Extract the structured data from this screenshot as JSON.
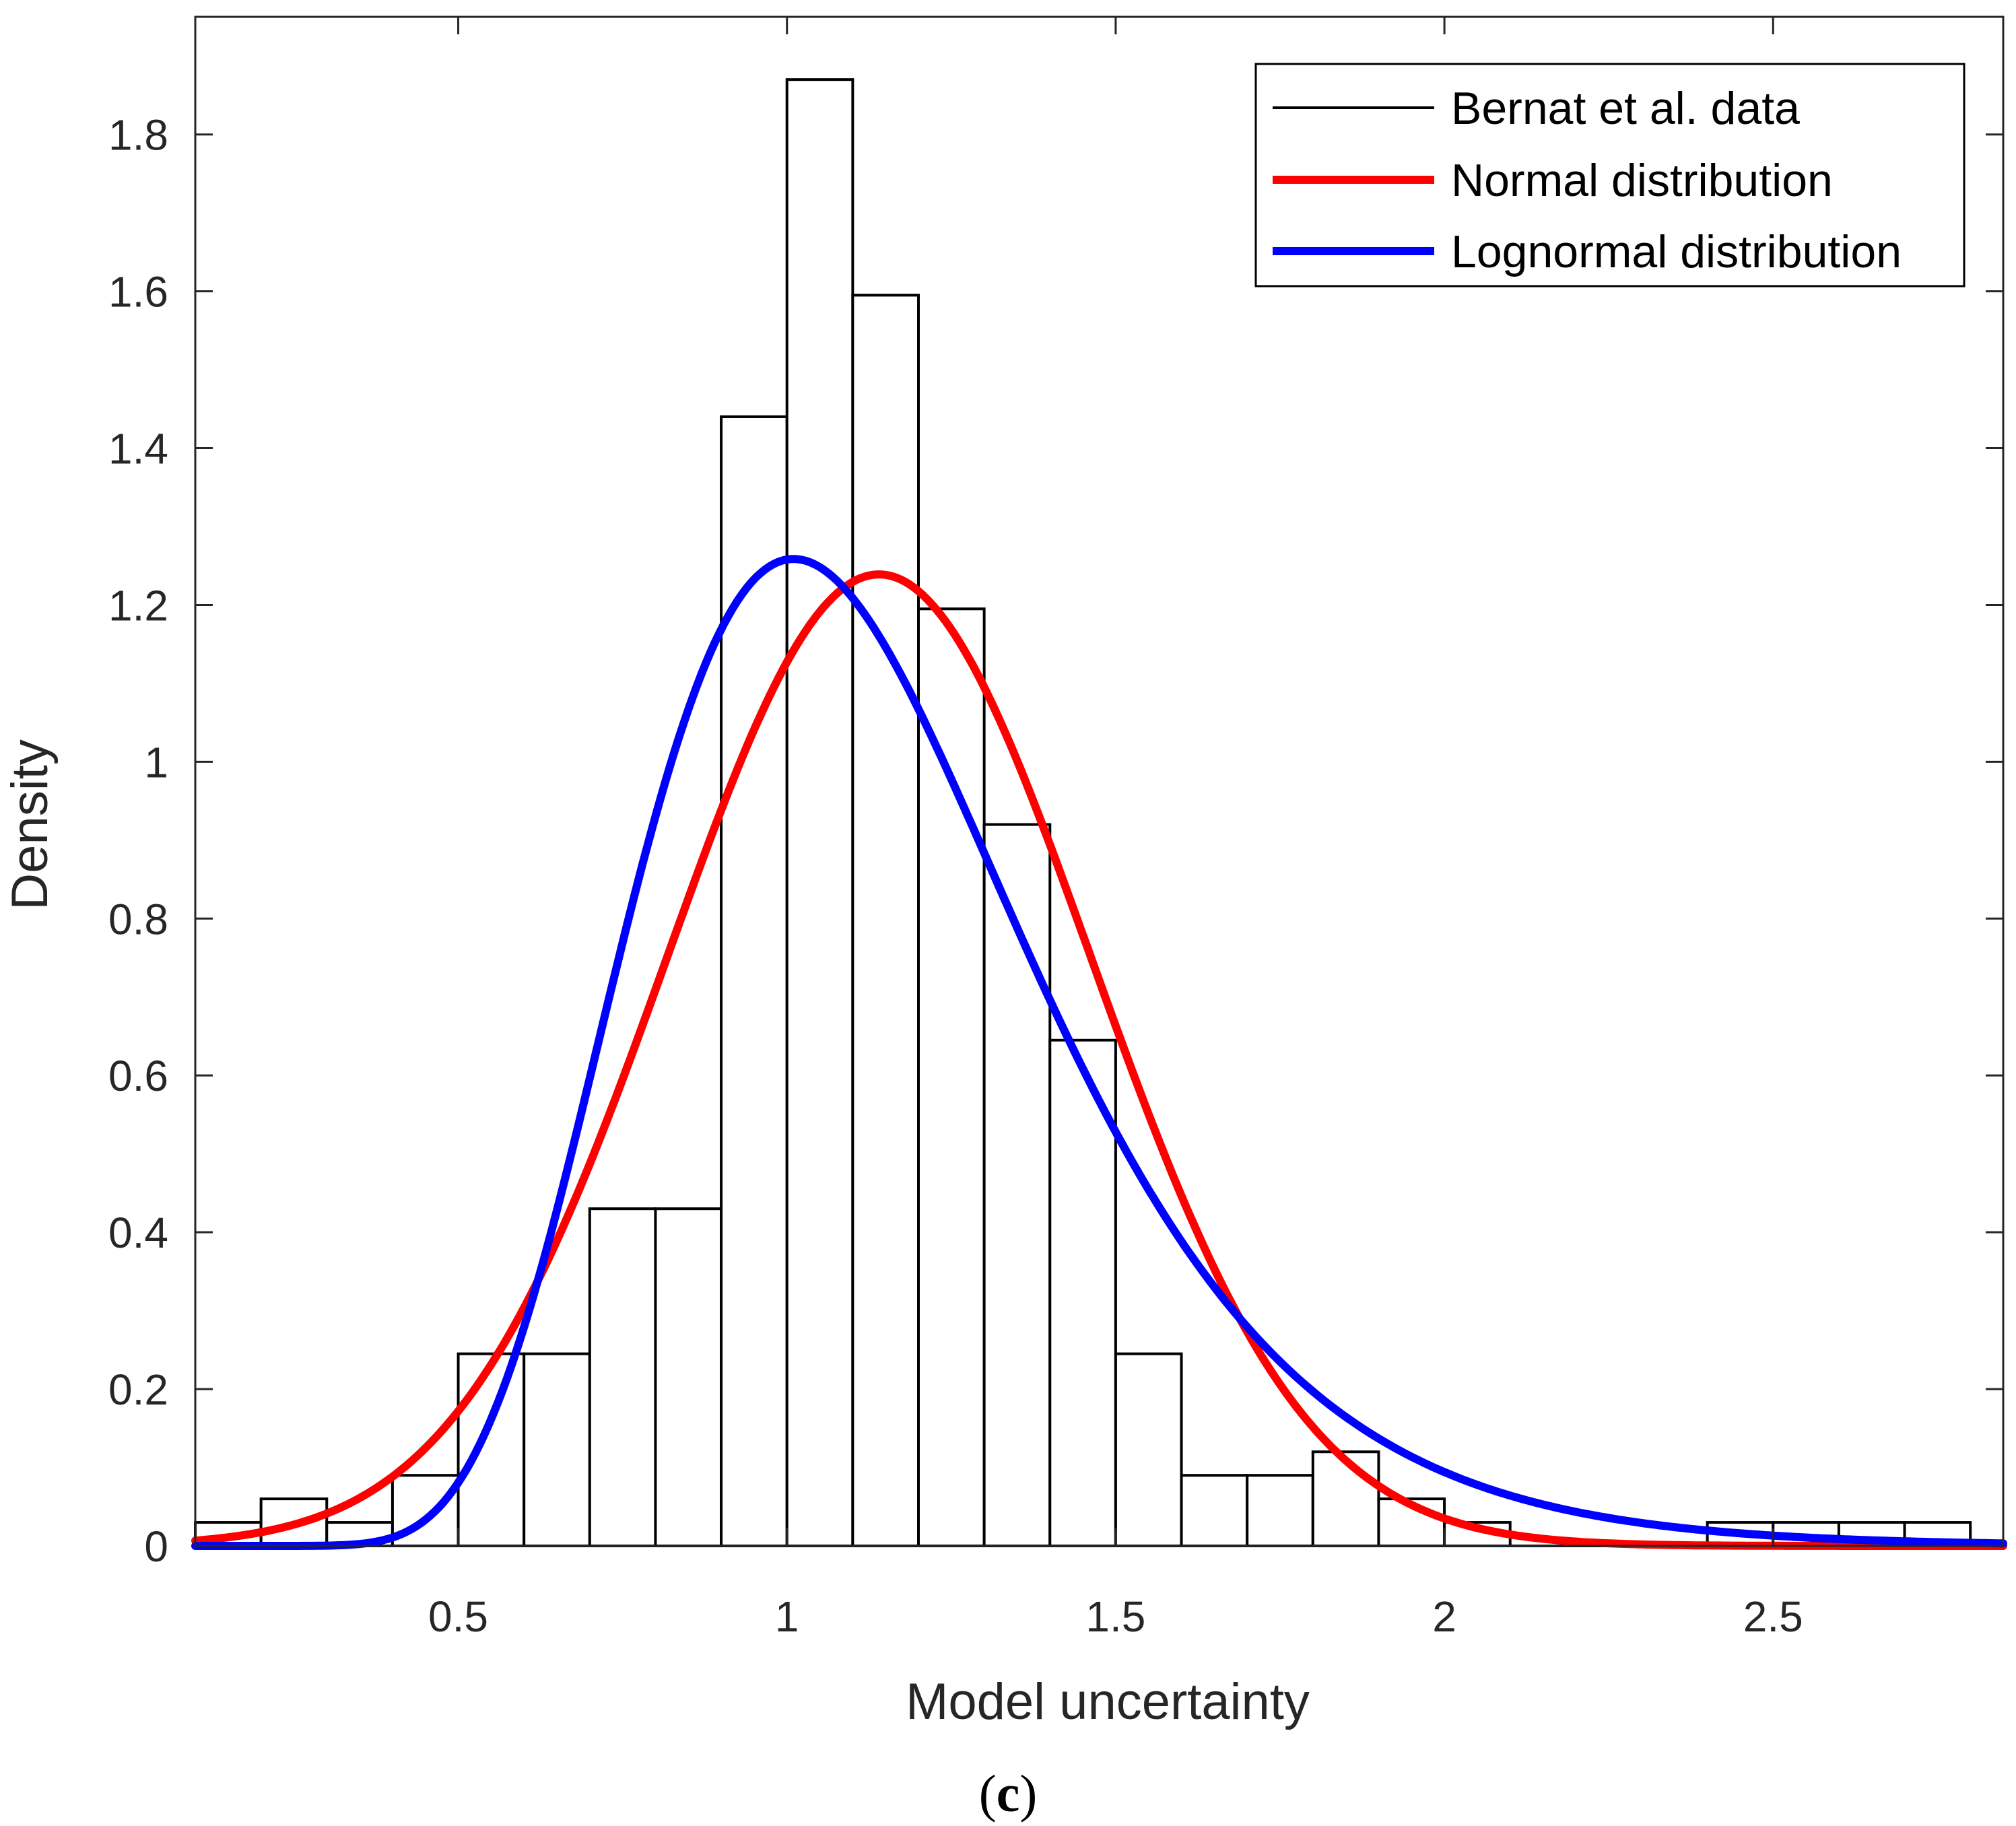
{
  "chart_data": {
    "type": "bar",
    "title": "",
    "xlabel": "Model uncertainty",
    "ylabel": "Density",
    "xlim": [
      0.1,
      2.85
    ],
    "ylim": [
      0,
      1.95
    ],
    "xticks": [
      0.5,
      1,
      1.5,
      2,
      2.5
    ],
    "xtick_labels": [
      "0.5",
      "1",
      "1.5",
      "2",
      "2.5"
    ],
    "yticks": [
      0,
      0.2,
      0.4,
      0.6,
      0.8,
      1,
      1.2,
      1.4,
      1.6,
      1.8
    ],
    "ytick_labels": [
      "0",
      "0.2",
      "0.4",
      "0.6",
      "0.8",
      "1",
      "1.2",
      "1.4",
      "1.6",
      "1.8"
    ],
    "grid": false,
    "legend_position": "top-right",
    "histogram": {
      "name": "Bernat et al. data",
      "color": "#000000",
      "bin_width": 0.1,
      "bin_starts": [
        0.1,
        0.2,
        0.3,
        0.4,
        0.5,
        0.6,
        0.7,
        0.8,
        0.9,
        1.0,
        1.1,
        1.2,
        1.3,
        1.4,
        1.5,
        1.6,
        1.7,
        1.8,
        1.9,
        2.0,
        2.1,
        2.2,
        2.3,
        2.4,
        2.5,
        2.6,
        2.7
      ],
      "densities": [
        0.03,
        0.06,
        0.03,
        0.09,
        0.245,
        0.245,
        0.43,
        0.43,
        1.44,
        1.87,
        1.595,
        1.195,
        0.92,
        0.645,
        0.245,
        0.09,
        0.09,
        0.12,
        0.06,
        0.03,
        0.0,
        0.0,
        0.0,
        0.03,
        0.03,
        0.03,
        0.03
      ]
    },
    "series": [
      {
        "name": "Normal distribution",
        "kind": "normal",
        "color": "#ff0000",
        "mu": 1.14,
        "sigma": 0.322
      },
      {
        "name": "Lognormal distribution",
        "kind": "lognormal",
        "color": "#0000ff",
        "mu_log": 0.1,
        "sigma_log": 0.3
      }
    ],
    "caption": "(c)",
    "caption_letter": "c"
  }
}
